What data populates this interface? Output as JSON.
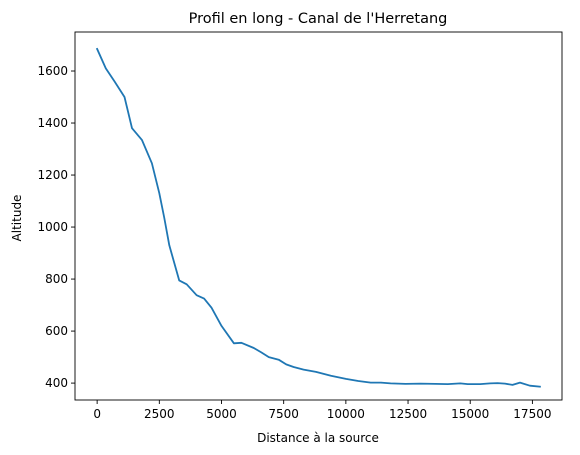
{
  "chart_data": {
    "type": "line",
    "title": "Profil en long - Canal de l'Herretang",
    "xlabel": "Distance à la source",
    "ylabel": "Altitude",
    "xlim": [
      -890,
      18690
    ],
    "ylim": [
      335,
      1750
    ],
    "xticks": [
      0,
      2500,
      5000,
      7500,
      10000,
      12500,
      15000,
      17500
    ],
    "yticks": [
      400,
      600,
      800,
      1000,
      1200,
      1400,
      1600
    ],
    "grid": false,
    "color": "#1f77b4",
    "series": [
      {
        "x": [
          0,
          350,
          700,
          1100,
          1400,
          1800,
          2200,
          2500,
          2700,
          2900,
          3300,
          3600,
          4000,
          4300,
          4600,
          5000,
          5500,
          5800,
          6300,
          6600,
          6900,
          7300,
          7600,
          7900,
          8300,
          8800,
          9400,
          10000,
          10500,
          11000,
          11400,
          11800,
          12400,
          13000,
          13600,
          14100,
          14600,
          14900,
          15400,
          15800,
          16100,
          16400,
          16700,
          17000,
          17400,
          17800
        ],
        "y": [
          1685,
          1610,
          1560,
          1500,
          1380,
          1335,
          1245,
          1130,
          1035,
          930,
          795,
          780,
          738,
          725,
          690,
          620,
          553,
          555,
          535,
          518,
          500,
          490,
          472,
          462,
          452,
          443,
          428,
          416,
          408,
          402,
          402,
          399,
          397,
          398,
          397,
          396,
          399,
          396,
          396,
          399,
          400,
          398,
          393,
          402,
          390,
          386
        ]
      }
    ]
  }
}
